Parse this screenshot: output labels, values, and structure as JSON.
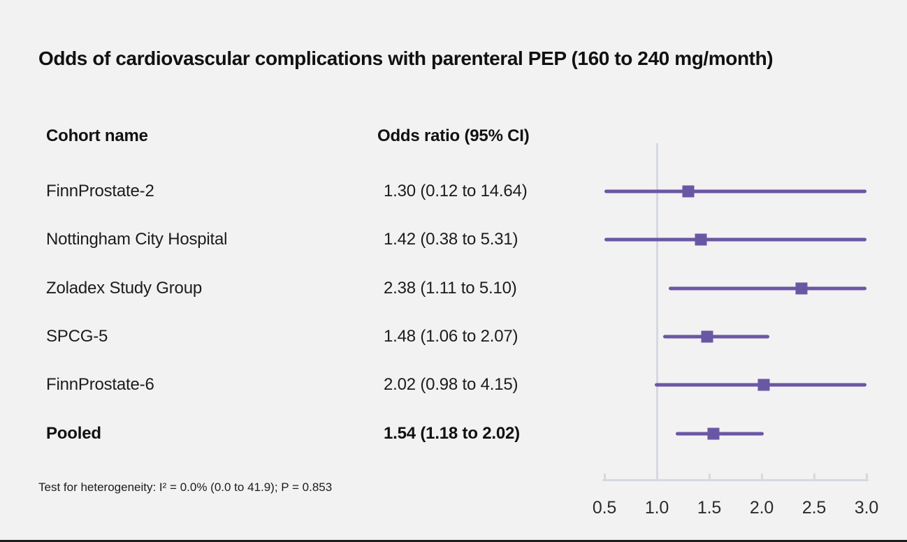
{
  "chart_data": {
    "type": "forest",
    "title": "Odds of cardiovascular complications with parenteral PEP (160 to 240 mg/month)",
    "columns": [
      "Cohort name",
      "Odds ratio (95% CI)"
    ],
    "rows": [
      {
        "cohort": "FinnProstate-2",
        "label": "1.30 (0.12 to 14.64)",
        "estimate": 1.3,
        "ci_low": 0.12,
        "ci_high": 14.64,
        "pooled": false
      },
      {
        "cohort": "Nottingham City Hospital",
        "label": "1.42 (0.38 to 5.31)",
        "estimate": 1.42,
        "ci_low": 0.38,
        "ci_high": 5.31,
        "pooled": false
      },
      {
        "cohort": "Zoladex Study Group",
        "label": "2.38 (1.11 to 5.10)",
        "estimate": 2.38,
        "ci_low": 1.11,
        "ci_high": 5.1,
        "pooled": false
      },
      {
        "cohort": "SPCG-5",
        "label": "1.48 (1.06 to 2.07)",
        "estimate": 1.48,
        "ci_low": 1.06,
        "ci_high": 2.07,
        "pooled": false
      },
      {
        "cohort": "FinnProstate-6",
        "label": "2.02 (0.98 to 4.15)",
        "estimate": 2.02,
        "ci_low": 0.98,
        "ci_high": 4.15,
        "pooled": false
      },
      {
        "cohort": "Pooled",
        "label": "1.54 (1.18 to 2.02)",
        "estimate": 1.54,
        "ci_low": 1.18,
        "ci_high": 2.02,
        "pooled": true
      }
    ],
    "x_axis": {
      "scale": "linear",
      "range": [
        0.5,
        3.0
      ],
      "ticks": [
        0.5,
        1.0,
        1.5,
        2.0,
        2.5,
        3.0
      ],
      "tick_labels": [
        "0.5",
        "1.0",
        "1.5",
        "2.0",
        "2.5",
        "3.0"
      ],
      "reference_line": 1.0
    },
    "footnote": "Test for heterogeneity: I² = 0.0% (0.0 to 41.9); P = 0.853",
    "colors": {
      "marker": "#6a57a4",
      "axis": "#d5d9e0",
      "background": "#f2f2f2",
      "text": "#1c1c1c"
    }
  }
}
